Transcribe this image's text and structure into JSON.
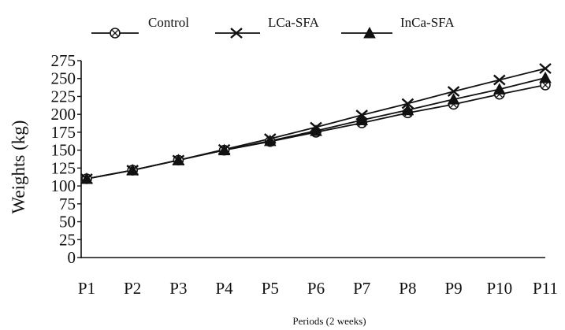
{
  "chart_data": {
    "type": "line",
    "categories": [
      "P1",
      "P2",
      "P3",
      "P4",
      "P5",
      "P6",
      "P7",
      "P8",
      "P9",
      "P10",
      "P11"
    ],
    "series": [
      {
        "name": "Control",
        "marker": "circle-cross",
        "values": [
          110,
          122,
          136,
          150,
          162,
          175,
          188,
          202,
          214,
          228,
          241
        ]
      },
      {
        "name": "LCa-SFA",
        "marker": "x",
        "values": [
          110,
          122,
          136,
          151,
          166,
          182,
          199,
          215,
          232,
          248,
          264
        ]
      },
      {
        "name": "InCa-SFA",
        "marker": "triangle",
        "values": [
          110,
          122,
          136,
          150,
          163,
          177,
          192,
          206,
          221,
          235,
          251
        ]
      }
    ],
    "yticks": [
      0,
      25,
      50,
      75,
      100,
      125,
      150,
      175,
      200,
      225,
      250,
      275
    ],
    "ylim": [
      0,
      275
    ],
    "ylabel": "Weights (kg)",
    "xlabel": "Periods (2 weeks)",
    "legend_position": "top",
    "grid": false,
    "line_color": "#111111"
  }
}
